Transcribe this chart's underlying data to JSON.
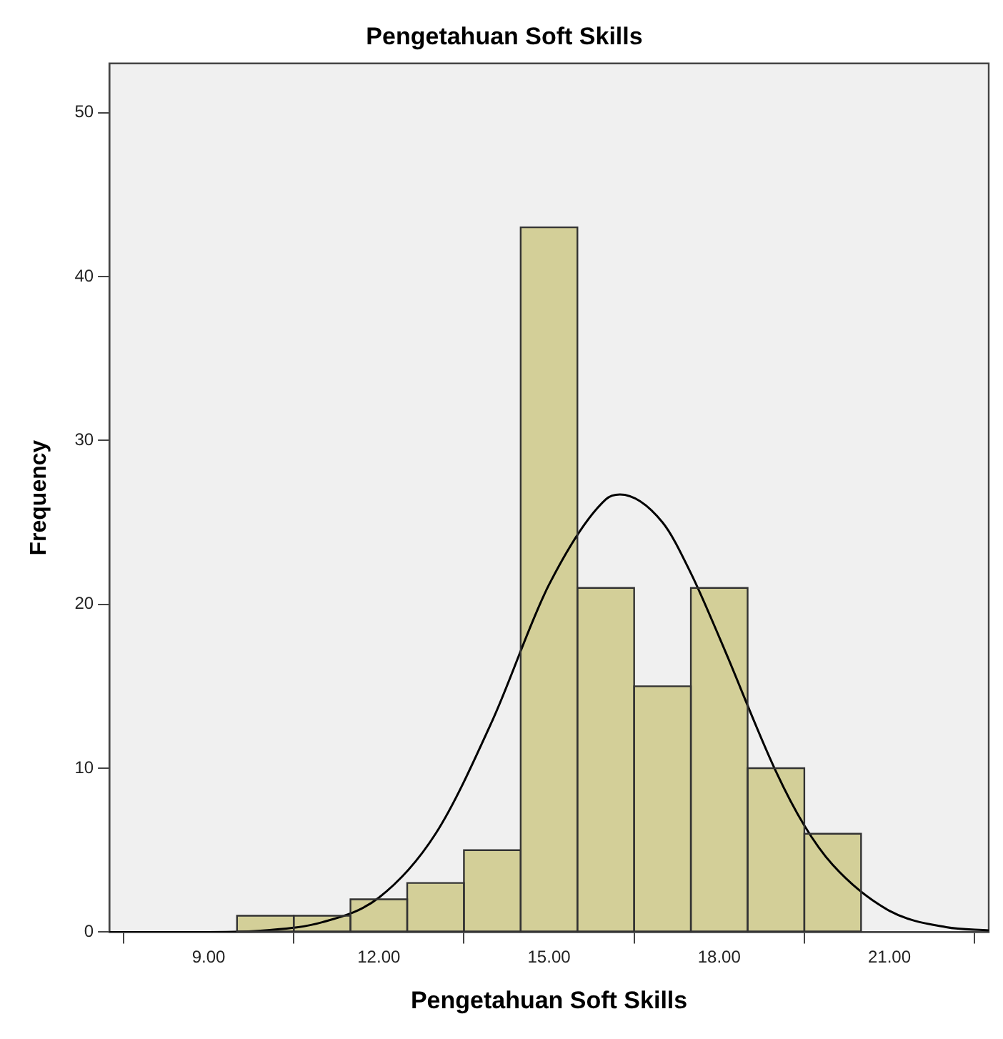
{
  "chart_data": {
    "type": "histogram",
    "title": "Pengetahuan Soft Skills",
    "xlabel": "Pengetahuan Soft Skills",
    "ylabel": "Frequency",
    "bins": [
      9.5,
      10.5,
      11.5,
      12.5,
      13.5,
      14.5,
      15.5,
      16.5,
      17.5,
      18.5,
      19.5,
      20.5
    ],
    "values": [
      1,
      1,
      2,
      3,
      5,
      43,
      21,
      15,
      21,
      10,
      6
    ],
    "color": "#d3cf98",
    "series": [
      {
        "type": "line",
        "color": "#000000",
        "x": [
          7.25,
          8,
          9,
          10,
          11,
          12,
          13,
          14,
          15,
          16,
          16.25,
          17,
          17.5,
          18,
          19,
          19.5,
          20,
          21,
          22,
          22.75
        ],
        "values": [
          0,
          0,
          0,
          0.1,
          0.6,
          2.1,
          6,
          12.9,
          21.2,
          26.4,
          26.7,
          25,
          21.9,
          18,
          9.8,
          6.5,
          4.1,
          1.3,
          0.3,
          0.1
        ]
      }
    ],
    "xlim": [
      7.25,
      22.75
    ],
    "ylim": [
      0,
      53
    ],
    "xticks": [
      {
        "value": 9,
        "label": "9.00"
      },
      {
        "value": 12,
        "label": "12.00"
      },
      {
        "value": 15,
        "label": "15.00"
      },
      {
        "value": 18,
        "label": "18.00"
      },
      {
        "value": 21,
        "label": "21.00"
      }
    ],
    "yticks": [
      0,
      10,
      20,
      30,
      40,
      50
    ],
    "grid": false,
    "legend": false,
    "marker": "none",
    "line_style": "solid"
  }
}
